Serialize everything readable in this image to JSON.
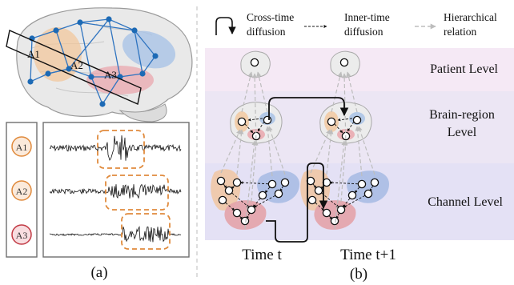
{
  "left_panel": {
    "region_labels": [
      "A1",
      "A2",
      "A3"
    ],
    "channel_labels": [
      "A1",
      "A2",
      "A3"
    ],
    "caption": "(a)",
    "colors": {
      "orange": "#e08a3c",
      "blue": "#1f66b5",
      "red": "#c23b45",
      "node": "#1d6ab5"
    }
  },
  "right_panel": {
    "legend": {
      "cross_time": "Cross-time diffusion",
      "inner_time": "Inner-time diffusion",
      "hierarchical": "Hierarchical relation"
    },
    "levels": {
      "patient": "Patient Level",
      "brain_region": "Brain-region Level",
      "channel": "Channel Level"
    },
    "time_labels": [
      "Time t",
      "Time t+1"
    ],
    "caption": "(b)",
    "band_colors": {
      "patient": "#f5e9f5",
      "brain": "#ece6f4",
      "channel": "#e4e1f5"
    }
  }
}
